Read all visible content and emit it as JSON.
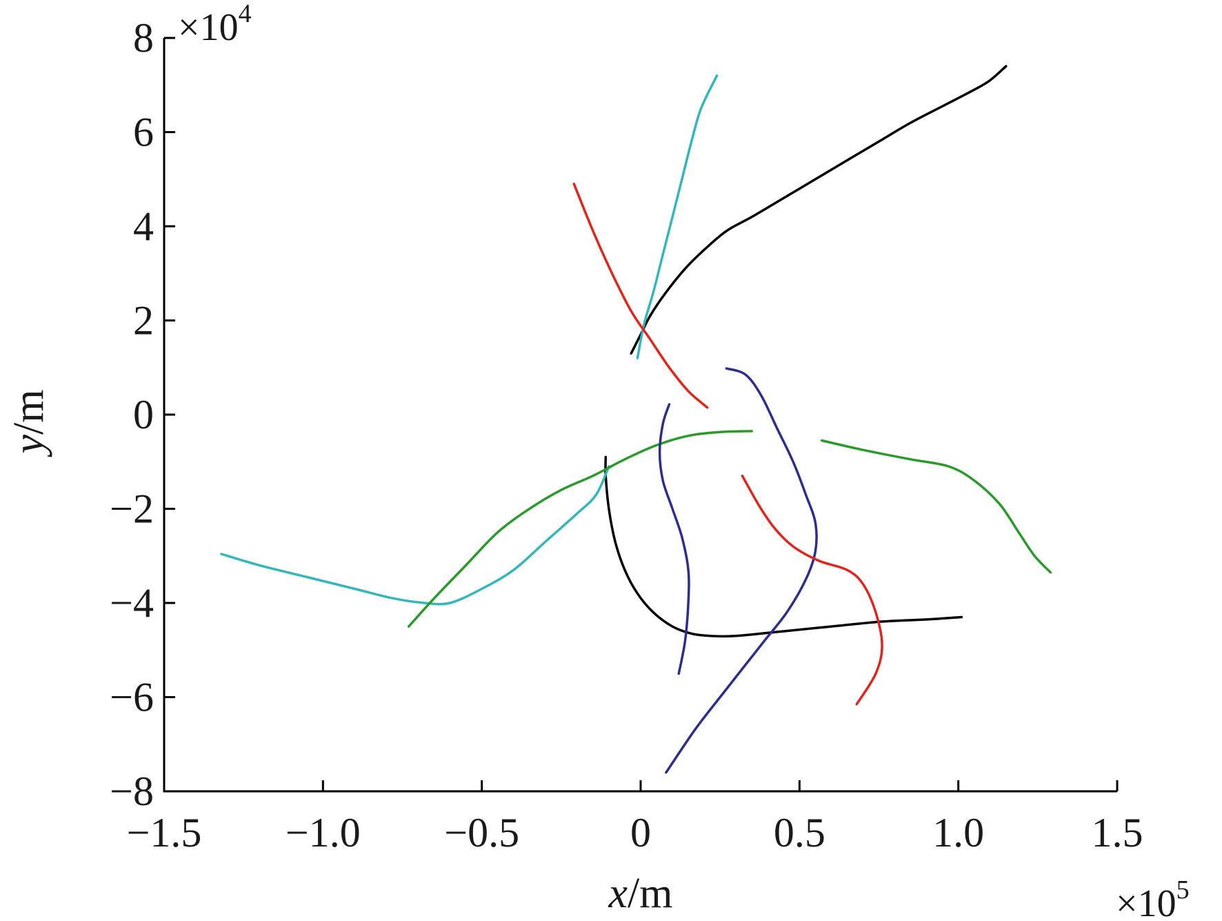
{
  "chart_data": {
    "type": "line",
    "xlabel_var": "x",
    "xlabel_unit": "/m",
    "ylabel_var": "y",
    "ylabel_unit": "/m",
    "x_exponent_text": "×10",
    "x_exponent_power": "5",
    "y_exponent_text": "×10",
    "y_exponent_power": "4",
    "xlim": [
      -1.5,
      1.5
    ],
    "ylim": [
      -8,
      8
    ],
    "x_ticks": [
      -1.5,
      -1.0,
      -0.5,
      0,
      0.5,
      1.0,
      1.5
    ],
    "x_tick_labels": [
      "−1.5",
      "−1.0",
      "−0.5",
      "0",
      "0.5",
      "1.0",
      "1.5"
    ],
    "y_ticks": [
      -8,
      -6,
      -4,
      -2,
      0,
      2,
      4,
      6,
      8
    ],
    "y_tick_labels": [
      "−8",
      "−6",
      "−4",
      "−2",
      "0",
      "2",
      "4",
      "6",
      "8"
    ],
    "grid": false,
    "series": [
      {
        "color": "#000000",
        "points": [
          [
            -0.03,
            1.3
          ],
          [
            0.0,
            1.7
          ],
          [
            0.03,
            2.1
          ],
          [
            0.08,
            2.6
          ],
          [
            0.14,
            3.1
          ],
          [
            0.2,
            3.5
          ],
          [
            0.27,
            3.9
          ],
          [
            0.35,
            4.2
          ],
          [
            0.45,
            4.6
          ],
          [
            0.55,
            5.0
          ],
          [
            0.65,
            5.4
          ],
          [
            0.75,
            5.8
          ],
          [
            0.85,
            6.2
          ],
          [
            0.95,
            6.55
          ],
          [
            1.05,
            6.9
          ],
          [
            1.1,
            7.1
          ],
          [
            1.15,
            7.4
          ]
        ]
      },
      {
        "color": "#34b6bd",
        "points": [
          [
            -0.01,
            1.2
          ],
          [
            0.01,
            1.9
          ],
          [
            0.04,
            2.6
          ],
          [
            0.07,
            3.4
          ],
          [
            0.1,
            4.2
          ],
          [
            0.13,
            5.0
          ],
          [
            0.16,
            5.8
          ],
          [
            0.19,
            6.5
          ],
          [
            0.24,
            7.2
          ]
        ]
      },
      {
        "color": "#e3241b",
        "points": [
          [
            -0.21,
            4.9
          ],
          [
            -0.15,
            3.9
          ],
          [
            -0.09,
            3.0
          ],
          [
            -0.03,
            2.2
          ],
          [
            0.03,
            1.6
          ],
          [
            0.09,
            1.0
          ],
          [
            0.15,
            0.5
          ],
          [
            0.21,
            0.15
          ]
        ]
      },
      {
        "color": "#000000",
        "points": [
          [
            -0.11,
            -0.9
          ],
          [
            -0.11,
            -1.3
          ],
          [
            -0.1,
            -2.0
          ],
          [
            -0.08,
            -2.7
          ],
          [
            -0.05,
            -3.3
          ],
          [
            -0.01,
            -3.8
          ],
          [
            0.04,
            -4.2
          ],
          [
            0.1,
            -4.5
          ],
          [
            0.16,
            -4.65
          ],
          [
            0.22,
            -4.7
          ],
          [
            0.3,
            -4.7
          ],
          [
            0.45,
            -4.6
          ],
          [
            0.6,
            -4.5
          ],
          [
            0.75,
            -4.4
          ],
          [
            0.9,
            -4.35
          ],
          [
            1.01,
            -4.3
          ]
        ]
      },
      {
        "color": "#34b6bd",
        "points": [
          [
            -1.32,
            -2.96
          ],
          [
            -1.2,
            -3.2
          ],
          [
            -1.05,
            -3.45
          ],
          [
            -0.9,
            -3.7
          ],
          [
            -0.78,
            -3.9
          ],
          [
            -0.68,
            -4.0
          ],
          [
            -0.6,
            -4.0
          ],
          [
            -0.5,
            -3.7
          ],
          [
            -0.4,
            -3.3
          ],
          [
            -0.3,
            -2.7
          ],
          [
            -0.2,
            -2.1
          ],
          [
            -0.14,
            -1.7
          ],
          [
            -0.1,
            -1.1
          ]
        ]
      },
      {
        "color": "#2a9b2a",
        "points": [
          [
            -0.73,
            -4.5
          ],
          [
            -0.65,
            -3.9
          ],
          [
            -0.55,
            -3.2
          ],
          [
            -0.45,
            -2.5
          ],
          [
            -0.35,
            -2.0
          ],
          [
            -0.25,
            -1.6
          ],
          [
            -0.15,
            -1.3
          ],
          [
            -0.05,
            -0.95
          ],
          [
            0.05,
            -0.65
          ],
          [
            0.15,
            -0.45
          ],
          [
            0.25,
            -0.37
          ],
          [
            0.35,
            -0.35
          ]
        ]
      },
      {
        "color": "#2a9b2a",
        "points": [
          [
            0.57,
            -0.55
          ],
          [
            0.7,
            -0.75
          ],
          [
            0.85,
            -0.95
          ],
          [
            0.97,
            -1.1
          ],
          [
            1.05,
            -1.4
          ],
          [
            1.13,
            -1.9
          ],
          [
            1.19,
            -2.5
          ],
          [
            1.24,
            -3.0
          ],
          [
            1.29,
            -3.35
          ]
        ]
      },
      {
        "color": "#2b2d8f",
        "points": [
          [
            0.09,
            0.22
          ],
          [
            0.07,
            -0.2
          ],
          [
            0.06,
            -0.8
          ],
          [
            0.07,
            -1.4
          ],
          [
            0.1,
            -2.0
          ],
          [
            0.13,
            -2.6
          ],
          [
            0.15,
            -3.3
          ],
          [
            0.15,
            -4.0
          ],
          [
            0.14,
            -4.8
          ],
          [
            0.12,
            -5.5
          ]
        ]
      },
      {
        "color": "#2b2d8f",
        "points": [
          [
            0.27,
            0.98
          ],
          [
            0.33,
            0.85
          ],
          [
            0.38,
            0.4
          ],
          [
            0.43,
            -0.3
          ],
          [
            0.48,
            -1.0
          ],
          [
            0.52,
            -1.7
          ],
          [
            0.55,
            -2.3
          ],
          [
            0.55,
            -2.9
          ],
          [
            0.52,
            -3.5
          ],
          [
            0.46,
            -4.2
          ],
          [
            0.39,
            -4.8
          ],
          [
            0.32,
            -5.4
          ],
          [
            0.25,
            -6.0
          ],
          [
            0.17,
            -6.7
          ],
          [
            0.08,
            -7.6
          ]
        ]
      },
      {
        "color": "#e3241b",
        "points": [
          [
            0.32,
            -1.3
          ],
          [
            0.37,
            -1.9
          ],
          [
            0.42,
            -2.4
          ],
          [
            0.48,
            -2.8
          ],
          [
            0.56,
            -3.1
          ],
          [
            0.65,
            -3.3
          ],
          [
            0.7,
            -3.6
          ],
          [
            0.74,
            -4.2
          ],
          [
            0.76,
            -4.9
          ],
          [
            0.74,
            -5.5
          ],
          [
            0.68,
            -6.15
          ]
        ]
      }
    ]
  }
}
